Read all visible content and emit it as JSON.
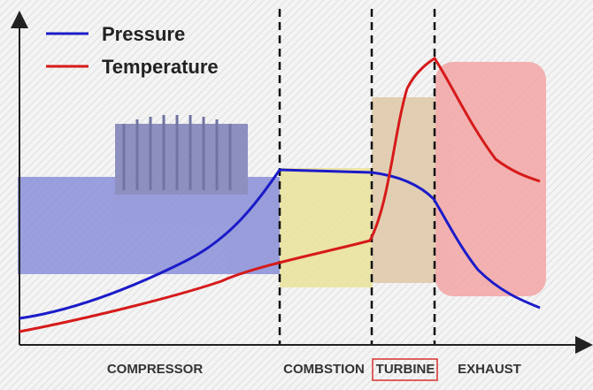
{
  "legend": {
    "items": [
      "Pressure",
      "Temperature"
    ]
  },
  "sections": [
    "COMPRESSOR",
    "COMBSTION",
    "TURBINE",
    "EXHAUST"
  ]
}
